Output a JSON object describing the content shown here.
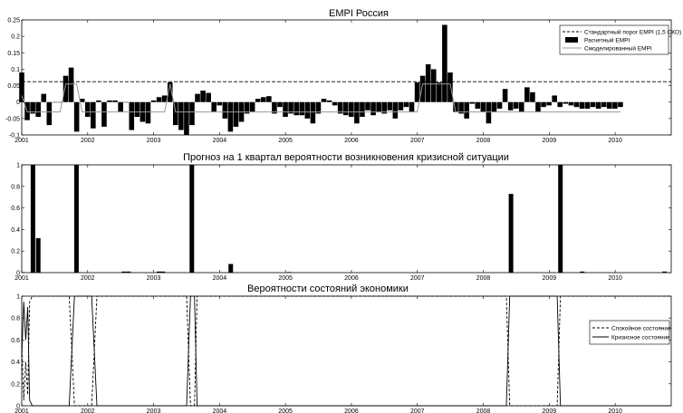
{
  "chart_data": [
    {
      "type": "bar",
      "title": "EMPI Россия",
      "xlim": [
        2001,
        2010.85
      ],
      "ylim": [
        -0.1,
        0.25
      ],
      "yticks": [
        -0.1,
        -0.05,
        0,
        0.05,
        0.1,
        0.15,
        0.2,
        0.25
      ],
      "ytick_labels": [
        "-0.1",
        "-0.05",
        "0",
        "0.05",
        "0.1",
        "0.15",
        "0.2",
        "0.25"
      ],
      "xticks": [
        2001,
        2002,
        2003,
        2004,
        2005,
        2006,
        2007,
        2008,
        2009,
        2010
      ],
      "xtick_labels": [
        "2001",
        "2002",
        "2003",
        "2004",
        "2005",
        "2006",
        "2007",
        "2008",
        "2009",
        "2010"
      ],
      "threshold": 0.062,
      "legend": {
        "position": "top-right",
        "entries": [
          "Стандартный порог EMPI (1,5 СКО)",
          "Расчетный EMPI",
          "Смоделированный EMPI"
        ]
      },
      "x_start": 2001.0,
      "x_step": 0.0833,
      "series": [
        {
          "name": "Расчетный EMPI",
          "values": [
            0.09,
            -0.055,
            -0.035,
            -0.045,
            0.025,
            -0.07,
            0.0,
            0.0,
            0.08,
            0.105,
            -0.09,
            0.01,
            -0.045,
            -0.08,
            0.005,
            -0.075,
            0.005,
            0.005,
            -0.03,
            0.0,
            -0.085,
            -0.045,
            -0.06,
            -0.065,
            0.005,
            0.015,
            0.02,
            0.06,
            -0.07,
            -0.085,
            -0.1,
            -0.07,
            0.025,
            0.035,
            0.028,
            -0.03,
            -0.01,
            -0.05,
            -0.09,
            -0.075,
            -0.06,
            -0.035,
            -0.03,
            0.01,
            0.015,
            0.018,
            -0.035,
            -0.015,
            -0.045,
            -0.035,
            -0.04,
            -0.04,
            -0.05,
            -0.065,
            -0.035,
            0.01,
            0.005,
            -0.01,
            -0.035,
            -0.04,
            -0.045,
            -0.065,
            -0.045,
            -0.025,
            -0.04,
            -0.03,
            -0.035,
            -0.025,
            -0.05,
            -0.025,
            -0.015,
            -0.03,
            0.06,
            0.08,
            0.115,
            0.1,
            0.06,
            0.235,
            0.09,
            -0.03,
            -0.035,
            -0.05,
            -0.005,
            -0.02,
            -0.03,
            -0.065,
            -0.03,
            -0.02,
            0.04,
            -0.025,
            -0.02,
            -0.03,
            0.045,
            0.03,
            -0.03,
            -0.015,
            -0.01,
            0.02,
            -0.015,
            -0.005,
            -0.01,
            -0.015,
            -0.02,
            -0.02,
            -0.015,
            -0.02,
            -0.015,
            -0.02,
            -0.02,
            -0.015
          ]
        },
        {
          "name": "Смоделированный EMPI",
          "values": [
            0.02,
            -0.03,
            -0.03,
            -0.03,
            -0.03,
            -0.03,
            -0.03,
            -0.03,
            0.055,
            0.055,
            0.055,
            -0.03,
            -0.03,
            -0.03,
            -0.03,
            -0.03,
            -0.03,
            -0.03,
            -0.03,
            -0.03,
            -0.03,
            -0.03,
            -0.03,
            -0.03,
            -0.03,
            -0.03,
            -0.03,
            0.055,
            -0.03,
            -0.03,
            -0.03,
            -0.03,
            -0.03,
            -0.03,
            -0.03,
            -0.03,
            -0.03,
            -0.03,
            -0.03,
            -0.03,
            -0.03,
            -0.03,
            -0.03,
            -0.03,
            -0.03,
            -0.03,
            -0.03,
            -0.03,
            -0.03,
            -0.03,
            -0.03,
            -0.03,
            -0.03,
            -0.03,
            -0.03,
            -0.03,
            -0.03,
            -0.03,
            -0.03,
            -0.03,
            -0.03,
            -0.03,
            -0.03,
            -0.03,
            -0.03,
            -0.03,
            -0.03,
            -0.03,
            -0.03,
            -0.03,
            -0.03,
            -0.03,
            -0.03,
            0.055,
            0.055,
            0.055,
            0.055,
            0.055,
            0.055,
            -0.03,
            -0.03,
            -0.03,
            -0.03,
            -0.03,
            -0.03,
            -0.03,
            -0.03,
            -0.03,
            -0.03,
            -0.03,
            -0.03,
            -0.03,
            -0.03,
            -0.03,
            -0.03,
            -0.03,
            -0.03,
            -0.03,
            -0.03,
            -0.03,
            -0.03,
            -0.03,
            -0.03,
            -0.03,
            -0.03,
            -0.03,
            -0.03,
            -0.03,
            -0.03,
            -0.03
          ]
        }
      ]
    },
    {
      "type": "bar",
      "title": "Прогноз на 1 квартал вероятности возникновения кризисной ситуации",
      "xlim": [
        2001,
        2010.85
      ],
      "ylim": [
        0,
        1
      ],
      "yticks": [
        0,
        0.2,
        0.4,
        0.6,
        0.8,
        1
      ],
      "ytick_labels": [
        "0",
        "0.2",
        "0.4",
        "0.6",
        "0.8",
        "1"
      ],
      "xticks": [
        2001,
        2002,
        2003,
        2004,
        2005,
        2006,
        2007,
        2008,
        2009,
        2010
      ],
      "xtick_labels": [
        "2001",
        "2002",
        "2003",
        "2004",
        "2005",
        "2006",
        "2007",
        "2008",
        "2009",
        "2010"
      ],
      "x": [
        2001.17,
        2001.25,
        2001.83,
        2002.55,
        2002.62,
        2003.08,
        2003.14,
        2003.58,
        2004.17,
        2005.06,
        2008.42,
        2009.17,
        2009.5,
        2010.75
      ],
      "values": [
        1.0,
        0.32,
        1.0,
        0.01,
        0.01,
        0.01,
        0.01,
        1.0,
        0.08,
        0.005,
        0.73,
        1.0,
        0.01,
        0.01
      ]
    },
    {
      "type": "line",
      "title": "Вероятности состояний экономики",
      "xlim": [
        2001,
        2010.85
      ],
      "ylim": [
        0,
        1
      ],
      "yticks": [
        0,
        0.2,
        0.4,
        0.6,
        0.8,
        1
      ],
      "ytick_labels": [
        "0",
        "0.2",
        "0.4",
        "0.6",
        "0.8",
        "1"
      ],
      "xticks": [
        2001,
        2002,
        2003,
        2004,
        2005,
        2006,
        2007,
        2008,
        2009,
        2010
      ],
      "xtick_labels": [
        "2001",
        "2002",
        "2003",
        "2004",
        "2005",
        "2006",
        "2007",
        "2008",
        "2009",
        "2010"
      ],
      "legend": {
        "position": "right",
        "entries": [
          "Спокойное состояние",
          "Кризисное состояние"
        ]
      },
      "series": [
        {
          "name": "Спокойное состояние",
          "style": "dashed",
          "x": [
            2001.0,
            2001.03,
            2001.06,
            2001.09,
            2001.12,
            2001.16,
            2001.25,
            2001.72,
            2001.76,
            2001.8,
            2001.86,
            2001.9,
            2002.06,
            2002.1,
            2002.14,
            2003.5,
            2003.56,
            2003.62,
            2003.66,
            2008.35,
            2008.4,
            2008.45,
            2009.12,
            2009.17,
            2010.85
          ],
          "values": [
            0.55,
            0.05,
            0.4,
            0.1,
            0.95,
            1.0,
            1.0,
            1.0,
            0.5,
            0.0,
            0.0,
            0.0,
            0.0,
            0.5,
            1.0,
            1.0,
            0.0,
            0.0,
            1.0,
            1.0,
            0.0,
            0.0,
            0.0,
            1.0,
            1.0
          ]
        },
        {
          "name": "Кризисное состояние",
          "style": "solid",
          "x": [
            2001.0,
            2001.03,
            2001.06,
            2001.09,
            2001.12,
            2001.16,
            2001.25,
            2001.72,
            2001.76,
            2001.8,
            2001.86,
            2001.9,
            2002.06,
            2002.1,
            2002.14,
            2003.5,
            2003.56,
            2003.62,
            2003.66,
            2008.35,
            2008.4,
            2008.45,
            2009.12,
            2009.17,
            2010.85
          ],
          "values": [
            0.45,
            0.95,
            0.6,
            0.9,
            0.05,
            0.0,
            0.0,
            0.0,
            0.5,
            1.0,
            1.0,
            1.0,
            1.0,
            0.5,
            0.0,
            0.0,
            1.0,
            1.0,
            0.0,
            0.0,
            1.0,
            1.0,
            1.0,
            0.0,
            0.0
          ]
        }
      ]
    }
  ]
}
